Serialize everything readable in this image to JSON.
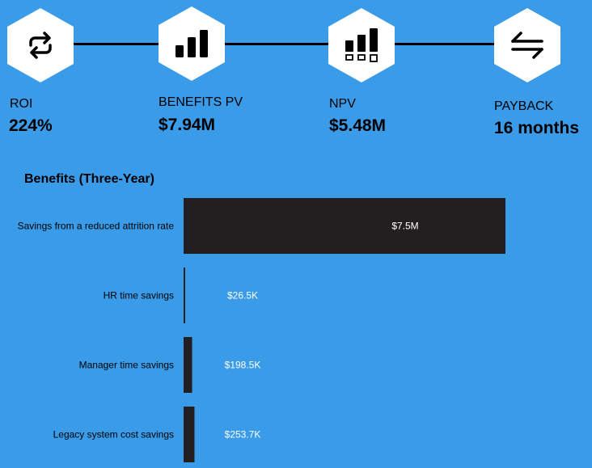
{
  "colors": {
    "background": "#3a9be8",
    "bar": "#231f20",
    "hex": "#ffffff"
  },
  "metrics": [
    {
      "label": "ROI",
      "value": "224%",
      "icon": "refresh-cycle-icon"
    },
    {
      "label": "BENEFITS PV",
      "value": "$7.94M",
      "icon": "bar-chart-icon"
    },
    {
      "label": "NPV",
      "value": "$5.48M",
      "icon": "bar-chart-boxes-icon"
    },
    {
      "label": "PAYBACK",
      "value": "16 months",
      "icon": "exchange-arrows-icon"
    }
  ],
  "chart_data": {
    "type": "bar",
    "orientation": "horizontal",
    "title": "Benefits (Three-Year)",
    "categories": [
      "Savings from a reduced attrition rate",
      "HR time savings",
      "Manager time savings",
      "Legacy system cost savings"
    ],
    "values": [
      7500000,
      26500,
      198500,
      253700
    ],
    "value_labels": [
      "$7.5M",
      "$26.5K",
      "$198.5K",
      "$253.7K"
    ],
    "xlim": [
      0,
      7500000
    ],
    "grid": false
  }
}
